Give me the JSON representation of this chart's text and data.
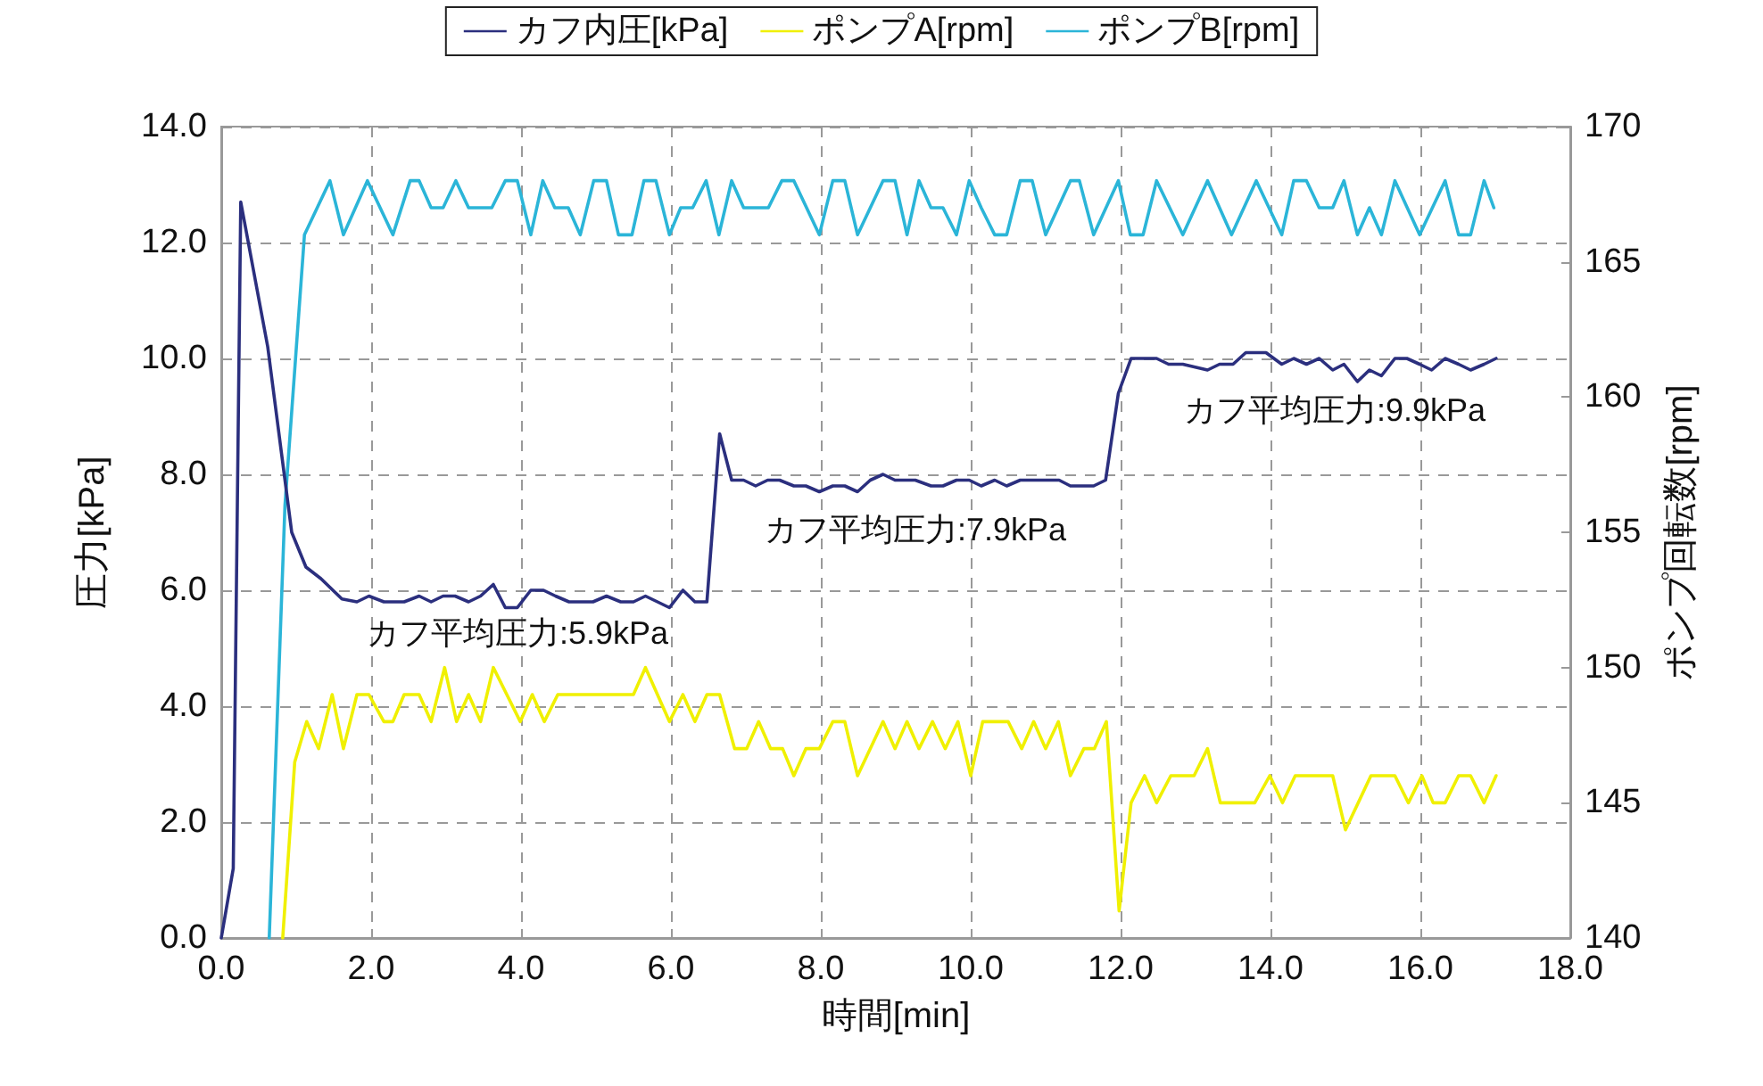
{
  "chart_data": {
    "type": "line",
    "xlabel": "時間[min]",
    "ylabel": "圧力[kPa]",
    "y2label": "ポンプ回転数[rpm]",
    "xlim": [
      0,
      18
    ],
    "xticks": [
      {
        "value": 0,
        "label": "0.0"
      },
      {
        "value": 2,
        "label": "2.0"
      },
      {
        "value": 4,
        "label": "4.0"
      },
      {
        "value": 6,
        "label": "6.0"
      },
      {
        "value": 8,
        "label": "8.0"
      },
      {
        "value": 10,
        "label": "10.0"
      },
      {
        "value": 12,
        "label": "12.0"
      },
      {
        "value": 14,
        "label": "14.0"
      },
      {
        "value": 16,
        "label": "16.0"
      },
      {
        "value": 18,
        "label": "18.0"
      }
    ],
    "ylim": [
      0,
      14
    ],
    "yticks": [
      {
        "value": 0,
        "label": "0.0"
      },
      {
        "value": 2,
        "label": "2.0"
      },
      {
        "value": 4,
        "label": "4.0"
      },
      {
        "value": 6,
        "label": "6.0"
      },
      {
        "value": 8,
        "label": "8.0"
      },
      {
        "value": 10,
        "label": "10.0"
      },
      {
        "value": 12,
        "label": "12.0"
      },
      {
        "value": 14,
        "label": "14.0"
      }
    ],
    "y2lim": [
      140,
      170
    ],
    "y2ticks": [
      140,
      145,
      150,
      155,
      160,
      165,
      170
    ],
    "grid": true,
    "legend": "top",
    "marker": "none",
    "line_style": "solid",
    "annotations": [
      "カフ平均圧力:5.9kPa",
      "カフ平均圧力:7.9kPa",
      "カフ平均圧力:9.9kPa"
    ],
    "series": [
      {
        "name": "カフ内圧[kPa]",
        "color": "#2b2f7e",
        "x": [
          0.0,
          0.16,
          0.26,
          0.62,
          0.94,
          1.13,
          1.33,
          1.61,
          1.81,
          1.97,
          2.17,
          2.44,
          2.64,
          2.8,
          2.96,
          3.12,
          3.3,
          3.46,
          3.63,
          3.79,
          3.95,
          4.13,
          4.3,
          4.46,
          4.64,
          4.96,
          5.14,
          5.33,
          5.5,
          5.66,
          5.82,
          5.98,
          6.16,
          6.32,
          6.48,
          6.65,
          6.81,
          6.97,
          7.13,
          7.29,
          7.45,
          7.64,
          7.8,
          7.98,
          8.16,
          8.32,
          8.49,
          8.66,
          8.83,
          8.99,
          9.26,
          9.47,
          9.63,
          9.81,
          9.98,
          10.14,
          10.32,
          10.48,
          10.66,
          11.18,
          11.33,
          11.64,
          11.8,
          11.97,
          12.14,
          12.48,
          12.64,
          12.83,
          13.16,
          13.32,
          13.5,
          13.67,
          13.94,
          14.15,
          14.31,
          14.48,
          14.65,
          14.83,
          14.98,
          15.16,
          15.32,
          15.48,
          15.66,
          15.82,
          15.99,
          16.15,
          16.33,
          16.51,
          16.67,
          16.85,
          17.01
        ],
        "values": [
          0.0,
          1.2,
          12.7,
          10.2,
          7.0,
          6.4,
          6.2,
          5.85,
          5.8,
          5.9,
          5.8,
          5.8,
          5.9,
          5.8,
          5.9,
          5.9,
          5.8,
          5.9,
          6.1,
          5.7,
          5.7,
          6.0,
          6.0,
          5.9,
          5.8,
          5.8,
          5.9,
          5.8,
          5.8,
          5.9,
          5.8,
          5.7,
          6.0,
          5.8,
          5.8,
          8.7,
          7.9,
          7.9,
          7.8,
          7.9,
          7.9,
          7.8,
          7.8,
          7.7,
          7.8,
          7.8,
          7.7,
          7.9,
          8.0,
          7.9,
          7.9,
          7.8,
          7.8,
          7.9,
          7.9,
          7.8,
          7.9,
          7.8,
          7.9,
          7.9,
          7.8,
          7.8,
          7.9,
          9.4,
          10.0,
          10.0,
          9.9,
          9.9,
          9.8,
          9.9,
          9.9,
          10.1,
          10.1,
          9.9,
          10.0,
          9.9,
          10.0,
          9.8,
          9.9,
          9.6,
          9.8,
          9.7,
          10.0,
          10.0,
          9.9,
          9.8,
          10.0,
          9.9,
          9.8,
          9.9,
          10.0
        ]
      },
      {
        "name": "ポンプA[rpm]",
        "color": "#f0f000",
        "axis": "y2",
        "x": [
          0.82,
          0.98,
          1.14,
          1.3,
          1.48,
          1.63,
          1.81,
          1.97,
          2.17,
          2.29,
          2.44,
          2.64,
          2.8,
          2.98,
          3.14,
          3.3,
          3.46,
          3.63,
          3.81,
          3.99,
          4.15,
          4.31,
          4.49,
          5.5,
          5.66,
          5.82,
          5.98,
          6.16,
          6.32,
          6.48,
          6.65,
          6.85,
          7.01,
          7.17,
          7.33,
          7.49,
          7.64,
          7.8,
          7.98,
          8.16,
          8.32,
          8.49,
          8.83,
          8.99,
          9.15,
          9.31,
          9.49,
          9.66,
          9.83,
          10.0,
          10.16,
          10.5,
          10.68,
          10.84,
          11.0,
          11.17,
          11.33,
          11.51,
          11.65,
          11.81,
          11.98,
          12.14,
          12.32,
          12.48,
          12.67,
          12.98,
          13.16,
          13.33,
          13.79,
          13.99,
          14.16,
          14.33,
          14.83,
          15.0,
          15.34,
          15.66,
          15.84,
          16.02,
          16.17,
          16.33,
          16.51,
          16.67,
          16.85,
          17.01
        ],
        "values": [
          140,
          146.5,
          148,
          147,
          149,
          147,
          149,
          149,
          148,
          148,
          149,
          149,
          148,
          150,
          148,
          149,
          148,
          150,
          149,
          148,
          149,
          148,
          149,
          149,
          150,
          149,
          148,
          149,
          148,
          149,
          149,
          147,
          147,
          148,
          147,
          147,
          146,
          147,
          147,
          148,
          148,
          146,
          148,
          147,
          148,
          147,
          148,
          147,
          148,
          146,
          148,
          148,
          147,
          148,
          147,
          148,
          146,
          147,
          147,
          148,
          141,
          145,
          146,
          145,
          146,
          146,
          147,
          145,
          145,
          146,
          145,
          146,
          146,
          144,
          146,
          146,
          145,
          146,
          145,
          145,
          146,
          146,
          145,
          146
        ]
      },
      {
        "name": "ポンプB[rpm]",
        "color": "#2bb5d8",
        "axis": "y2",
        "x": [
          0.64,
          0.85,
          1.11,
          1.45,
          1.63,
          1.95,
          2.29,
          2.52,
          2.64,
          2.8,
          2.96,
          3.13,
          3.3,
          3.61,
          3.79,
          3.95,
          4.13,
          4.29,
          4.45,
          4.63,
          4.79,
          4.97,
          5.14,
          5.3,
          5.48,
          5.64,
          5.8,
          5.98,
          6.13,
          6.29,
          6.47,
          6.64,
          6.81,
          6.97,
          7.3,
          7.48,
          7.64,
          7.98,
          8.16,
          8.32,
          8.49,
          8.83,
          8.99,
          9.15,
          9.31,
          9.47,
          9.63,
          9.81,
          9.98,
          10.14,
          10.32,
          10.48,
          10.66,
          10.82,
          11.0,
          11.33,
          11.45,
          11.64,
          11.97,
          12.13,
          12.3,
          12.48,
          12.83,
          13.16,
          13.48,
          13.81,
          14.15,
          14.31,
          14.48,
          14.65,
          14.83,
          14.98,
          15.16,
          15.32,
          15.48,
          15.66,
          15.99,
          16.33,
          16.51,
          16.67,
          16.85,
          16.98
        ],
        "values": [
          140,
          156,
          166,
          168,
          166,
          168,
          166,
          168,
          168,
          167,
          167,
          168,
          167,
          167,
          168,
          168,
          166,
          168,
          167,
          167,
          166,
          168,
          168,
          166,
          166,
          168,
          168,
          166,
          167,
          167,
          168,
          166,
          168,
          167,
          167,
          168,
          168,
          166,
          168,
          168,
          166,
          168,
          168,
          166,
          168,
          167,
          167,
          166,
          168,
          167,
          166,
          166,
          168,
          168,
          166,
          168,
          168,
          166,
          168,
          166,
          166,
          168,
          166,
          168,
          166,
          168,
          166,
          168,
          168,
          167,
          167,
          168,
          166,
          167,
          166,
          168,
          166,
          168,
          166,
          166,
          168,
          167
        ]
      }
    ]
  }
}
